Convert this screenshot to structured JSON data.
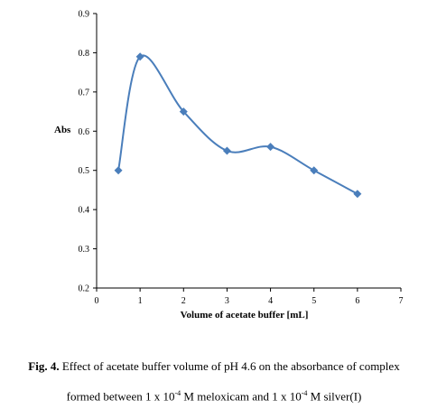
{
  "chart_data": {
    "type": "line",
    "series": [
      {
        "x": [
          0.5,
          1,
          2,
          3,
          4,
          5,
          6
        ],
        "y": [
          0.5,
          0.79,
          0.65,
          0.55,
          0.56,
          0.5,
          0.44
        ],
        "color": "#4A7EBB",
        "marker": "diamond",
        "smooth": true
      }
    ],
    "xlim": [
      0,
      7
    ],
    "ylim": [
      0.2,
      0.9
    ],
    "xticks": [
      "0",
      "1",
      "2",
      "3",
      "4",
      "5",
      "6",
      "7"
    ],
    "yticks": [
      "0.2",
      "0.3",
      "0.4",
      "0.5",
      "0.6",
      "0.7",
      "0.8",
      "0.9"
    ],
    "xlabel": "Volume of acetate buffer [mL]",
    "ylabel": "Abs",
    "grid": false
  },
  "caption": {
    "fig_label": "Fig. 4.",
    "line1_text": " Effect of acetate buffer volume of pH 4.6 on the absorbance of complex",
    "line2_part1": "formed between 1 x 10",
    "exp1": "-4",
    "line2_part2": " M meloxicam  and 1 x 10",
    "exp2": "-4",
    "line2_part3": " M silver(I)"
  }
}
